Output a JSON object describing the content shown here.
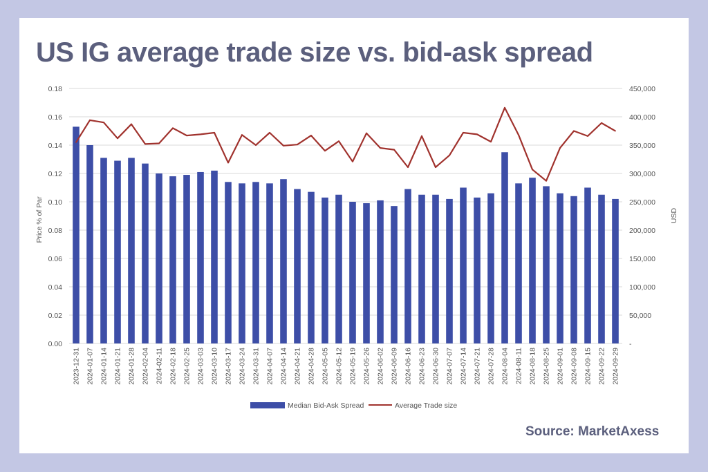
{
  "title": "US IG average trade size vs. bid-ask spread",
  "source": "Source: MarketAxess",
  "colors": {
    "background": "#c3c7e4",
    "card": "#ffffff",
    "title": "#5b5f7d",
    "bar": "#3d4ea7",
    "line": "#a0322d",
    "grid": "#d9d9d9"
  },
  "chart_data": {
    "type": "bar",
    "ylabel": "Price % of Par",
    "y2label": "USD",
    "ylim": [
      0,
      0.18
    ],
    "y2lim": [
      0,
      450000
    ],
    "yticks": [
      "0.00",
      "0.02",
      "0.04",
      "0.06",
      "0.08",
      "0.10",
      "0.12",
      "0.14",
      "0.16",
      "0.18"
    ],
    "y2ticks": [
      "-",
      "50,000",
      "100,000",
      "150,000",
      "200,000",
      "250,000",
      "300,000",
      "350,000",
      "400,000",
      "450,000"
    ],
    "grid": true,
    "legend_position": "bottom",
    "categories": [
      "2023-12-31",
      "2024-01-07",
      "2024-01-14",
      "2024-01-21",
      "2024-01-28",
      "2024-02-04",
      "2024-02-11",
      "2024-02-18",
      "2024-02-25",
      "2024-03-03",
      "2024-03-10",
      "2024-03-17",
      "2024-03-24",
      "2024-03-31",
      "2024-04-07",
      "2024-04-14",
      "2024-04-21",
      "2024-04-28",
      "2024-05-05",
      "2024-05-12",
      "2024-05-19",
      "2024-05-26",
      "2024-06-02",
      "2024-06-09",
      "2024-06-16",
      "2024-06-23",
      "2024-06-30",
      "2024-07-07",
      "2024-07-14",
      "2024-07-21",
      "2024-07-28",
      "2024-08-04",
      "2024-08-11",
      "2024-08-18",
      "2024-08-25",
      "2024-09-01",
      "2024-09-08",
      "2024-09-15",
      "2024-09-22",
      "2024-09-29"
    ],
    "series": [
      {
        "name": "Median Bid-Ask Spread",
        "type": "bar",
        "axis": "left",
        "values": [
          0.153,
          0.14,
          0.131,
          0.129,
          0.131,
          0.127,
          0.12,
          0.118,
          0.119,
          0.121,
          0.122,
          0.114,
          0.113,
          0.114,
          0.113,
          0.116,
          0.109,
          0.107,
          0.103,
          0.105,
          0.1,
          0.099,
          0.101,
          0.097,
          0.109,
          0.105,
          0.105,
          0.102,
          0.11,
          0.103,
          0.106,
          0.135,
          0.113,
          0.117,
          0.111,
          0.106,
          0.104,
          0.11,
          0.105,
          0.102
        ]
      },
      {
        "name": "Average Trade size",
        "type": "line",
        "axis": "right",
        "values": [
          355000,
          394000,
          390000,
          362000,
          387000,
          352000,
          353000,
          380000,
          367000,
          369000,
          372000,
          319000,
          368000,
          350000,
          372000,
          349000,
          351000,
          367000,
          340000,
          357000,
          321000,
          371000,
          345000,
          342000,
          311000,
          366000,
          311000,
          332000,
          372000,
          369000,
          356000,
          416000,
          368000,
          307000,
          287000,
          345000,
          375000,
          366000,
          389000,
          375000
        ]
      }
    ]
  }
}
